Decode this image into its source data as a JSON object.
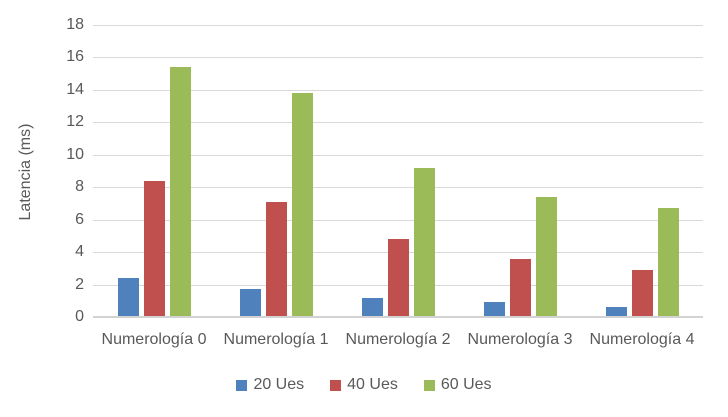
{
  "chart_data": {
    "type": "bar",
    "title": "",
    "xlabel": "",
    "ylabel": "Latencia (ms)",
    "categories": [
      "Numerología 0",
      "Numerología 1",
      "Numerología 2",
      "Numerología 3",
      "Numerología 4"
    ],
    "series": [
      {
        "name": "20 Ues",
        "color": "#4f81bd",
        "values": [
          2.4,
          1.7,
          1.2,
          0.9,
          0.6
        ]
      },
      {
        "name": "40 Ues",
        "color": "#c0504d",
        "values": [
          8.4,
          7.1,
          4.8,
          3.6,
          2.9
        ]
      },
      {
        "name": "60 Ues",
        "color": "#9bbb59",
        "values": [
          15.4,
          13.8,
          9.2,
          7.4,
          6.7
        ]
      }
    ],
    "ylim": [
      0,
      18
    ],
    "yticks": [
      0,
      2,
      4,
      6,
      8,
      10,
      12,
      14,
      16,
      18
    ],
    "grid": true,
    "legend_position": "bottom",
    "gridline_color": "#d9d9d9",
    "text_color": "#595959"
  }
}
